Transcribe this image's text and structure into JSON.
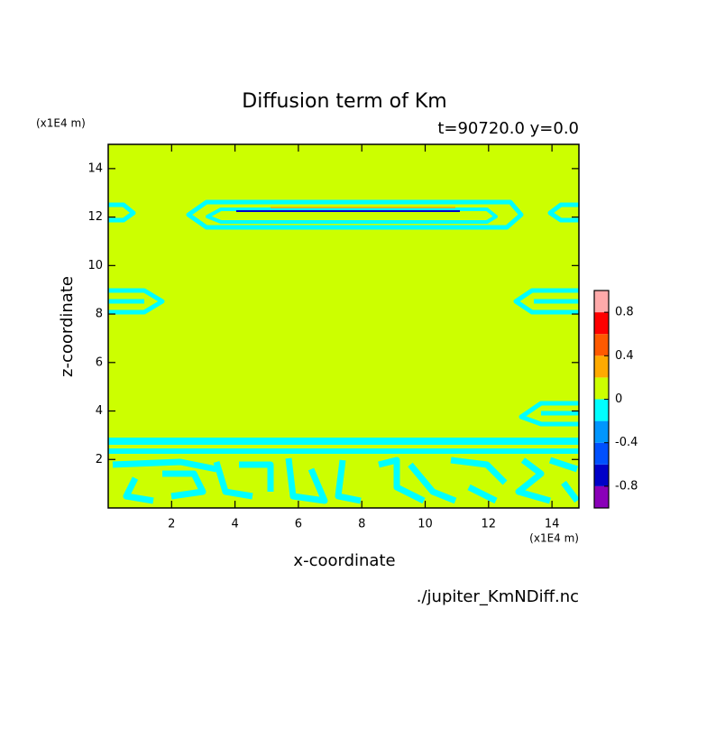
{
  "chart_data": {
    "type": "contour",
    "title": "Diffusion term of Km",
    "subtitle": "t=90720.0 y=0.0",
    "x_label": "x-coordinate",
    "y_label": "z-coordinate",
    "x_unit": "(x1E4 m)",
    "y_unit": "(x1E4 m)",
    "source": "./jupiter_KmNDiff.nc",
    "xlim": [
      0,
      14.85
    ],
    "ylim": [
      0,
      15
    ],
    "xticks": [
      2,
      4,
      6,
      8,
      10,
      12,
      14
    ],
    "yticks": [
      2,
      4,
      6,
      8,
      10,
      12,
      14
    ],
    "colorbar": {
      "levels": [
        -1,
        -0.8,
        -0.6,
        -0.4,
        -0.2,
        0,
        0.2,
        0.4,
        0.6,
        0.8,
        1
      ],
      "colors": [
        "#8a00b8",
        "#0000c8",
        "#0050ff",
        "#0096ff",
        "#00ffff",
        "#ccff00",
        "#ffaa00",
        "#ff5a00",
        "#ff0000",
        "#ffaaaa"
      ],
      "ticks": [
        -0.8,
        -0.4,
        0,
        0.4,
        0.8
      ]
    }
  }
}
